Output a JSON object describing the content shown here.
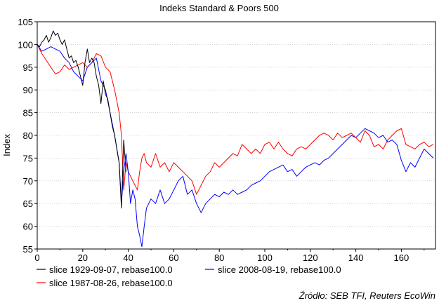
{
  "chart_data": {
    "type": "line",
    "title": "Indeks  Standard & Poors 500",
    "ylabel": "Index",
    "xlabel": "",
    "xlim": [
      0,
      175
    ],
    "ylim": [
      55,
      105
    ],
    "xticks": [
      0,
      20,
      40,
      60,
      80,
      100,
      120,
      140,
      160
    ],
    "yticks": [
      55,
      60,
      65,
      70,
      75,
      80,
      85,
      90,
      95,
      100,
      105
    ],
    "grid": true,
    "legend_position": "bottom",
    "source": "Źródło: SEB TFI, Reuters EcoWin",
    "series": [
      {
        "name": "slice 1929-09-07, rebase100.0",
        "color": "#000000",
        "points": [
          [
            0,
            100
          ],
          [
            1,
            99.5
          ],
          [
            2,
            100.5
          ],
          [
            3,
            101
          ],
          [
            4,
            102
          ],
          [
            5,
            100.5
          ],
          [
            6,
            101.5
          ],
          [
            7,
            103
          ],
          [
            8,
            102
          ],
          [
            9,
            102.5
          ],
          [
            10,
            101
          ],
          [
            11,
            100
          ],
          [
            12,
            101
          ],
          [
            13,
            99
          ],
          [
            14,
            97
          ],
          [
            15,
            97.5
          ],
          [
            16,
            96
          ],
          [
            17,
            96.5
          ],
          [
            18,
            95
          ],
          [
            19,
            93
          ],
          [
            20,
            91
          ],
          [
            21,
            96
          ],
          [
            22,
            99
          ],
          [
            23,
            96
          ],
          [
            24,
            97
          ],
          [
            25,
            96
          ],
          [
            26,
            93
          ],
          [
            27,
            91
          ],
          [
            28,
            87
          ],
          [
            29,
            92
          ],
          [
            30,
            89
          ],
          [
            31,
            88
          ],
          [
            32,
            85
          ],
          [
            33,
            82
          ],
          [
            34,
            80
          ],
          [
            35,
            77
          ],
          [
            36,
            74
          ],
          [
            37,
            64
          ],
          [
            38,
            79
          ],
          [
            39,
            72
          ]
        ]
      },
      {
        "name": "slice 1987-08-26, rebase100.0",
        "color": "#ff0000",
        "points": [
          [
            0,
            100
          ],
          [
            2,
            98
          ],
          [
            4,
            96.5
          ],
          [
            6,
            95
          ],
          [
            8,
            93.5
          ],
          [
            10,
            94
          ],
          [
            12,
            95.5
          ],
          [
            14,
            94.5
          ],
          [
            16,
            95
          ],
          [
            18,
            95.5
          ],
          [
            20,
            96
          ],
          [
            22,
            95
          ],
          [
            24,
            96
          ],
          [
            26,
            98
          ],
          [
            28,
            97.5
          ],
          [
            30,
            95
          ],
          [
            32,
            94
          ],
          [
            34,
            90
          ],
          [
            36,
            85
          ],
          [
            37,
            80
          ],
          [
            38,
            68
          ],
          [
            39,
            74
          ],
          [
            40,
            72
          ],
          [
            42,
            70
          ],
          [
            44,
            68
          ],
          [
            45,
            72
          ],
          [
            46,
            75
          ],
          [
            47,
            76
          ],
          [
            48,
            74
          ],
          [
            50,
            73
          ],
          [
            52,
            76
          ],
          [
            54,
            73
          ],
          [
            56,
            74
          ],
          [
            58,
            72
          ],
          [
            60,
            74
          ],
          [
            62,
            73
          ],
          [
            64,
            72
          ],
          [
            66,
            71
          ],
          [
            68,
            70
          ],
          [
            70,
            67
          ],
          [
            72,
            69
          ],
          [
            74,
            71
          ],
          [
            76,
            72
          ],
          [
            78,
            74
          ],
          [
            80,
            73
          ],
          [
            82,
            74
          ],
          [
            84,
            75
          ],
          [
            86,
            76
          ],
          [
            88,
            75.5
          ],
          [
            90,
            78
          ],
          [
            92,
            77
          ],
          [
            94,
            76
          ],
          [
            96,
            77
          ],
          [
            98,
            76
          ],
          [
            100,
            78
          ],
          [
            102,
            78.5
          ],
          [
            104,
            77
          ],
          [
            106,
            78.5
          ],
          [
            108,
            77
          ],
          [
            110,
            76
          ],
          [
            112,
            75.5
          ],
          [
            114,
            77
          ],
          [
            116,
            77.5
          ],
          [
            118,
            77
          ],
          [
            120,
            78
          ],
          [
            122,
            79
          ],
          [
            124,
            80
          ],
          [
            126,
            80.5
          ],
          [
            128,
            80
          ],
          [
            130,
            79
          ],
          [
            132,
            80.5
          ],
          [
            134,
            79.5
          ],
          [
            136,
            80
          ],
          [
            138,
            80.5
          ],
          [
            140,
            79.5
          ],
          [
            142,
            78.5
          ],
          [
            144,
            81
          ],
          [
            146,
            80
          ],
          [
            148,
            77.5
          ],
          [
            150,
            78
          ],
          [
            152,
            77
          ],
          [
            154,
            79
          ],
          [
            156,
            80
          ],
          [
            158,
            81
          ],
          [
            160,
            81.5
          ],
          [
            162,
            78
          ],
          [
            164,
            77.5
          ],
          [
            166,
            77
          ],
          [
            168,
            78
          ],
          [
            170,
            78.5
          ],
          [
            172,
            77.5
          ],
          [
            174,
            78
          ]
        ]
      },
      {
        "name": "slice 2008-08-19, rebase100.0",
        "color": "#0000ff",
        "points": [
          [
            0,
            100
          ],
          [
            2,
            98.5
          ],
          [
            4,
            99
          ],
          [
            6,
            99.5
          ],
          [
            8,
            99
          ],
          [
            10,
            98.5
          ],
          [
            12,
            97
          ],
          [
            14,
            96
          ],
          [
            16,
            94
          ],
          [
            18,
            93
          ],
          [
            20,
            92
          ],
          [
            22,
            95
          ],
          [
            24,
            96
          ],
          [
            26,
            97
          ],
          [
            28,
            92
          ],
          [
            30,
            90
          ],
          [
            32,
            85
          ],
          [
            34,
            80
          ],
          [
            36,
            74
          ],
          [
            37,
            65
          ],
          [
            38,
            72
          ],
          [
            39,
            76
          ],
          [
            40,
            72
          ],
          [
            41,
            65
          ],
          [
            42,
            68
          ],
          [
            43,
            66
          ],
          [
            44,
            60
          ],
          [
            45,
            58
          ],
          [
            46,
            55.5
          ],
          [
            47,
            60
          ],
          [
            48,
            64
          ],
          [
            50,
            66
          ],
          [
            52,
            65
          ],
          [
            54,
            68
          ],
          [
            56,
            65
          ],
          [
            58,
            66
          ],
          [
            60,
            68
          ],
          [
            62,
            70
          ],
          [
            64,
            71
          ],
          [
            66,
            67
          ],
          [
            68,
            68
          ],
          [
            70,
            65
          ],
          [
            72,
            63
          ],
          [
            74,
            65
          ],
          [
            76,
            66
          ],
          [
            78,
            67
          ],
          [
            80,
            66.5
          ],
          [
            82,
            67.5
          ],
          [
            84,
            67
          ],
          [
            86,
            68
          ],
          [
            88,
            67
          ],
          [
            90,
            67.5
          ],
          [
            92,
            68
          ],
          [
            94,
            69
          ],
          [
            96,
            69.5
          ],
          [
            98,
            70
          ],
          [
            100,
            71
          ],
          [
            102,
            72
          ],
          [
            104,
            72.5
          ],
          [
            106,
            73
          ],
          [
            108,
            73.5
          ],
          [
            110,
            72
          ],
          [
            112,
            72.5
          ],
          [
            114,
            71
          ],
          [
            116,
            72
          ],
          [
            118,
            73
          ],
          [
            120,
            73.5
          ],
          [
            122,
            74
          ],
          [
            124,
            73.5
          ],
          [
            126,
            74.5
          ],
          [
            128,
            75
          ],
          [
            130,
            76
          ],
          [
            132,
            77
          ],
          [
            134,
            78
          ],
          [
            136,
            79
          ],
          [
            138,
            80
          ],
          [
            140,
            79.5
          ],
          [
            142,
            80.5
          ],
          [
            144,
            81.5
          ],
          [
            146,
            81
          ],
          [
            148,
            80.5
          ],
          [
            150,
            79.5
          ],
          [
            152,
            80
          ],
          [
            154,
            78.5
          ],
          [
            156,
            79
          ],
          [
            158,
            78
          ],
          [
            160,
            74.5
          ],
          [
            162,
            72
          ],
          [
            164,
            74
          ],
          [
            166,
            73
          ],
          [
            168,
            75
          ],
          [
            170,
            77
          ],
          [
            172,
            76
          ],
          [
            174,
            75
          ]
        ]
      }
    ]
  }
}
